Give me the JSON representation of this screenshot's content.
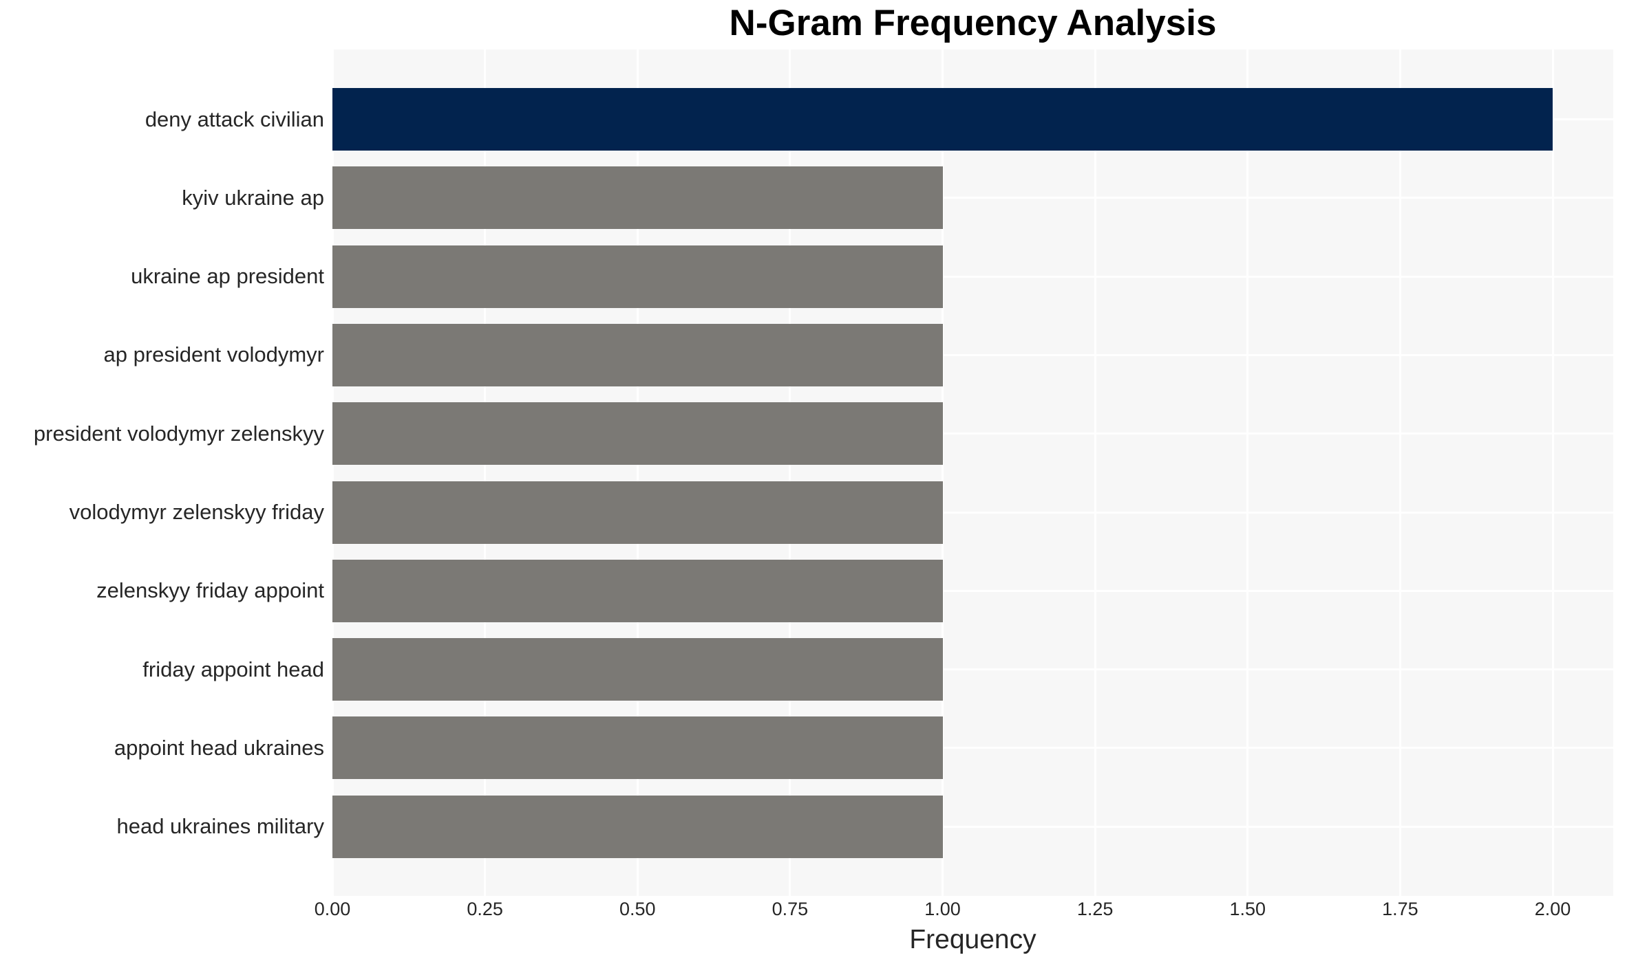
{
  "chart_data": {
    "type": "bar",
    "orientation": "horizontal",
    "title": "N-Gram Frequency Analysis",
    "xlabel": "Frequency",
    "ylabel": "",
    "categories": [
      "deny attack civilian",
      "kyiv ukraine ap",
      "ukraine ap president",
      "ap president volodymyr",
      "president volodymyr zelenskyy",
      "volodymyr zelenskyy friday",
      "zelenskyy friday appoint",
      "friday appoint head",
      "appoint head ukraines",
      "head ukraines military"
    ],
    "values": [
      2.0,
      1.0,
      1.0,
      1.0,
      1.0,
      1.0,
      1.0,
      1.0,
      1.0,
      1.0
    ],
    "xlim": [
      0,
      2.1
    ],
    "xticks": [
      0.0,
      0.25,
      0.5,
      0.75,
      1.0,
      1.25,
      1.5,
      1.75,
      2.0
    ],
    "xtick_labels": [
      "0.00",
      "0.25",
      "0.50",
      "0.75",
      "1.00",
      "1.25",
      "1.50",
      "1.75",
      "2.00"
    ],
    "grid": true,
    "legend": false,
    "bar_colors": [
      "#02234e",
      "#7b7975",
      "#7b7975",
      "#7b7975",
      "#7b7975",
      "#7b7975",
      "#7b7975",
      "#7b7975",
      "#7b7975",
      "#7b7975"
    ],
    "colors": {
      "highlight": "#02234e",
      "default": "#7b7975",
      "plot_bg": "#f7f7f7",
      "grid": "#ffffff",
      "text": "#262626",
      "title": "#000000",
      "background": "#ffffff"
    }
  }
}
